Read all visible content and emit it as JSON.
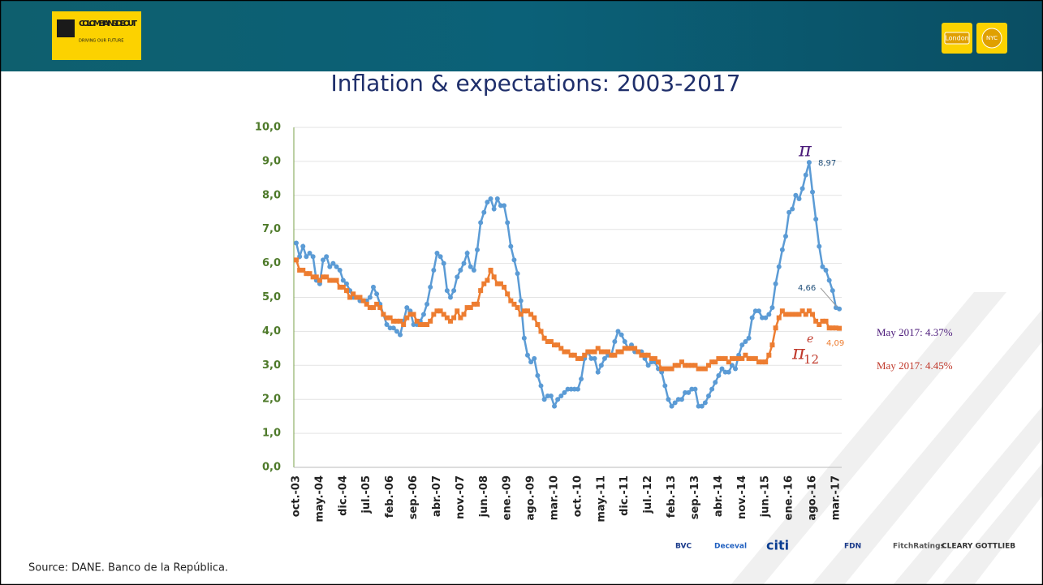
{
  "header": {
    "logo_title": "COLOMBIA INSIDE OUT",
    "logo_subtitle": "DRIVING OUR FUTURE",
    "city_1": "London",
    "city_2": "NYC"
  },
  "chart_data": {
    "type": "line",
    "title": "Inflation & expectations: 2003-2017",
    "categories": [
      "oct.-03",
      null,
      null,
      null,
      null,
      null,
      null,
      "may.-04",
      null,
      null,
      null,
      null,
      null,
      null,
      "dic.-04",
      null,
      null,
      null,
      null,
      null,
      null,
      "jul.-05",
      null,
      null,
      null,
      null,
      null,
      null,
      "feb.-06",
      null,
      null,
      null,
      null,
      null,
      null,
      "sep.-06",
      null,
      null,
      null,
      null,
      null,
      null,
      "abr.-07",
      null,
      null,
      null,
      null,
      null,
      null,
      "nov.-07",
      null,
      null,
      null,
      null,
      null,
      null,
      "jun.-08",
      null,
      null,
      null,
      null,
      null,
      null,
      "ene.-09",
      null,
      null,
      null,
      null,
      null,
      null,
      "ago.-09",
      null,
      null,
      null,
      null,
      null,
      null,
      "mar.-10",
      null,
      null,
      null,
      null,
      null,
      null,
      "oct.-10",
      null,
      null,
      null,
      null,
      null,
      null,
      "may.-11",
      null,
      null,
      null,
      null,
      null,
      null,
      "dic.-11",
      null,
      null,
      null,
      null,
      null,
      null,
      "jul.-12",
      null,
      null,
      null,
      null,
      null,
      null,
      "feb.-13",
      null,
      null,
      null,
      null,
      null,
      null,
      "sep.-13",
      null,
      null,
      null,
      null,
      null,
      null,
      "abr.-14",
      null,
      null,
      null,
      null,
      null,
      null,
      "nov.-14",
      null,
      null,
      null,
      null,
      null,
      null,
      "jun.-15",
      null,
      null,
      null,
      null,
      null,
      null,
      "ene.-16",
      null,
      null,
      null,
      null,
      null,
      null,
      "ago.-16",
      null,
      null,
      null,
      null,
      null,
      null,
      "mar.-17",
      null
    ],
    "series": [
      {
        "name": "π",
        "color": "#5b9bd5",
        "marker": "circle",
        "values": [
          6.6,
          6.2,
          6.5,
          6.2,
          6.3,
          6.2,
          5.5,
          5.4,
          6.1,
          6.2,
          5.9,
          6.0,
          5.9,
          5.8,
          5.5,
          5.4,
          5.2,
          5.0,
          5.0,
          4.9,
          4.9,
          4.9,
          5.0,
          5.3,
          5.1,
          4.8,
          4.5,
          4.2,
          4.1,
          4.1,
          4.0,
          3.9,
          4.3,
          4.7,
          4.6,
          4.2,
          4.2,
          4.3,
          4.5,
          4.8,
          5.3,
          5.8,
          6.3,
          6.2,
          6.0,
          5.2,
          5.0,
          5.2,
          5.6,
          5.8,
          6.0,
          6.3,
          5.9,
          5.8,
          6.4,
          7.2,
          7.5,
          7.8,
          7.9,
          7.6,
          7.9,
          7.7,
          7.7,
          7.2,
          6.5,
          6.1,
          5.7,
          4.9,
          3.8,
          3.3,
          3.1,
          3.2,
          2.7,
          2.4,
          2.0,
          2.1,
          2.1,
          1.8,
          2.0,
          2.1,
          2.2,
          2.3,
          2.3,
          2.3,
          2.3,
          2.6,
          3.2,
          3.4,
          3.2,
          3.2,
          2.8,
          3.0,
          3.2,
          3.3,
          3.3,
          3.7,
          4.0,
          3.9,
          3.7,
          3.5,
          3.6,
          3.4,
          3.4,
          3.4,
          3.2,
          3.0,
          3.1,
          3.1,
          2.9,
          2.8,
          2.4,
          2.0,
          1.8,
          1.9,
          2.0,
          2.0,
          2.2,
          2.2,
          2.3,
          2.3,
          1.8,
          1.8,
          1.9,
          2.1,
          2.3,
          2.5,
          2.7,
          2.9,
          2.8,
          2.8,
          3.0,
          2.9,
          3.3,
          3.6,
          3.7,
          3.8,
          4.4,
          4.6,
          4.6,
          4.4,
          4.4,
          4.5,
          4.7,
          5.4,
          5.9,
          6.4,
          6.8,
          7.5,
          7.6,
          8.0,
          7.9,
          8.2,
          8.6,
          8.97,
          8.1,
          7.3,
          6.5,
          5.9,
          5.8,
          5.5,
          5.2,
          4.7,
          4.66
        ]
      },
      {
        "name": "π12e",
        "color": "#ed7d31",
        "marker": "square",
        "values": [
          6.1,
          5.8,
          5.8,
          5.7,
          5.7,
          5.6,
          5.6,
          5.5,
          5.6,
          5.6,
          5.5,
          5.5,
          5.5,
          5.3,
          5.3,
          5.2,
          5.0,
          5.1,
          5.0,
          5.0,
          4.9,
          4.8,
          4.7,
          4.7,
          4.8,
          4.7,
          4.5,
          4.4,
          4.4,
          4.3,
          4.3,
          4.3,
          4.2,
          4.4,
          4.5,
          4.5,
          4.3,
          4.2,
          4.2,
          4.2,
          4.3,
          4.5,
          4.6,
          4.6,
          4.5,
          4.4,
          4.3,
          4.4,
          4.6,
          4.4,
          4.5,
          4.7,
          4.7,
          4.8,
          4.8,
          5.2,
          5.4,
          5.5,
          5.8,
          5.6,
          5.4,
          5.4,
          5.3,
          5.1,
          4.9,
          4.8,
          4.7,
          4.5,
          4.6,
          4.6,
          4.5,
          4.4,
          4.2,
          4.0,
          3.8,
          3.7,
          3.7,
          3.6,
          3.6,
          3.5,
          3.4,
          3.4,
          3.3,
          3.3,
          3.2,
          3.2,
          3.3,
          3.4,
          3.4,
          3.4,
          3.5,
          3.4,
          3.4,
          3.4,
          3.3,
          3.3,
          3.4,
          3.4,
          3.5,
          3.5,
          3.5,
          3.5,
          3.4,
          3.3,
          3.3,
          3.3,
          3.2,
          3.2,
          3.1,
          2.9,
          2.9,
          2.9,
          2.9,
          3.0,
          3.0,
          3.1,
          3.0,
          3.0,
          3.0,
          3.0,
          2.9,
          2.9,
          2.9,
          3.0,
          3.1,
          3.1,
          3.2,
          3.2,
          3.2,
          3.1,
          3.2,
          3.2,
          3.2,
          3.2,
          3.3,
          3.2,
          3.2,
          3.2,
          3.1,
          3.1,
          3.1,
          3.3,
          3.6,
          4.1,
          4.4,
          4.6,
          4.5,
          4.5,
          4.5,
          4.5,
          4.5,
          4.6,
          4.5,
          4.6,
          4.5,
          4.3,
          4.2,
          4.3,
          4.3,
          4.1,
          4.1,
          4.1,
          4.09
        ]
      }
    ],
    "ylim": [
      0,
      10
    ],
    "yticks": [
      {
        "value": 0,
        "label": "0,0"
      },
      {
        "value": 1,
        "label": "1,0"
      },
      {
        "value": 2,
        "label": "2,0"
      },
      {
        "value": 3,
        "label": "3,0"
      },
      {
        "value": 4,
        "label": "4,0"
      },
      {
        "value": 5,
        "label": "5,0"
      },
      {
        "value": 6,
        "label": "6,0"
      },
      {
        "value": 7,
        "label": "7,0"
      },
      {
        "value": 8,
        "label": "8,0"
      },
      {
        "value": 9,
        "label": "9,0"
      },
      {
        "value": 10,
        "label": "10,0"
      }
    ],
    "grid": true,
    "annotations": {
      "pi": "π",
      "pi_e_sup": "e",
      "pi_e_sub": "12",
      "peak": "8,97",
      "last_pi": "4,66",
      "last_pie": "4,09",
      "note_1": "May 2017: 4.37%",
      "note_2": "May 2017: 4.45%"
    }
  },
  "footer": {
    "source": "Source: DANE. Banco de la República.",
    "sponsors": [
      "BVC",
      "Deceval",
      "citi",
      "FDN",
      "FitchRatings",
      "CLEARY GOTTLIEB"
    ]
  }
}
